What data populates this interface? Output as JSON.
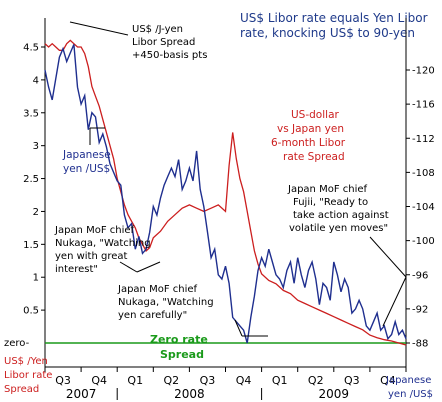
{
  "title_lines": [
    "US$ Libor rate equals Yen Libor",
    "rate, knocking US$ to 90-yen"
  ],
  "annotations": {
    "libor_spread": [
      "US$ /J-yen",
      "Libor Spread",
      "+450-basis pts"
    ],
    "japanese_yen": [
      "Japanese",
      "yen /US$"
    ],
    "us_dollar_spread": [
      "US-dollar",
      "vs Japan yen",
      "6-month Libor",
      "rate Spread"
    ],
    "nukaga_great": [
      "Japan MoF chief",
      "Nukaga, \"Watching",
      "yen with great",
      "interest\""
    ],
    "nukaga_carefully": [
      "Japan MoF chief",
      "Nukaga, \"Watching",
      "yen carefully\""
    ],
    "fujii": [
      "Japan MoF chief",
      "Fujii, \"Ready to",
      "take action against",
      "volatile yen moves\""
    ],
    "zero_rate_spread": [
      "Zero rate",
      "Spread"
    ]
  },
  "left_axis_label": [
    "US$ /Yen",
    "Libor rate",
    "Spread"
  ],
  "right_axis_label": [
    "Japanese",
    "yen /US$"
  ],
  "zero_label": "zero-",
  "colors": {
    "spread_line": "#cc1f1f",
    "yen_line": "#1f2f8f",
    "zero_line": "#1a9a1a",
    "title": "#1f3a8a",
    "grid": "#000000"
  },
  "chart_data": {
    "type": "line",
    "x_quarters": [
      "Q3",
      "Q4",
      "Q1",
      "Q2",
      "Q3",
      "Q4",
      "Q1",
      "Q2",
      "Q3",
      "Q4"
    ],
    "x_years": [
      "2007",
      "2008",
      "2009"
    ],
    "left_axis": {
      "ticks": [
        "4.5",
        "4",
        "3.5",
        "3",
        "2.5",
        "2",
        "1.5",
        "1",
        "0.5"
      ],
      "min": 0,
      "max": 4.75
    },
    "right_axis": {
      "ticks": [
        "120",
        "116",
        "112",
        "108",
        "104",
        "100",
        "96",
        "92",
        "88"
      ],
      "min": 88,
      "max": 123
    },
    "series": [
      {
        "name": "US-dollar vs Japan yen 6-month Libor rate Spread",
        "axis": "left",
        "x": [
          0.0,
          0.1,
          0.2,
          0.3,
          0.4,
          0.5,
          0.6,
          0.7,
          0.8,
          0.9,
          1.0,
          1.1,
          1.2,
          1.3,
          1.4,
          1.5,
          1.6,
          1.7,
          1.8,
          1.9,
          2.0,
          2.1,
          2.2,
          2.3,
          2.4,
          2.5,
          2.6,
          2.7,
          2.8,
          2.9,
          3.0,
          3.2,
          3.4,
          3.6,
          3.8,
          4.0,
          4.2,
          4.4,
          4.6,
          4.8,
          5.0,
          5.1,
          5.2,
          5.3,
          5.4,
          5.5,
          5.6,
          5.7,
          5.8,
          5.9,
          6.0,
          6.2,
          6.4,
          6.6,
          6.8,
          7.0,
          7.2,
          7.4,
          7.6,
          7.8,
          8.0,
          8.2,
          8.4,
          8.6,
          8.8,
          9.0,
          9.2,
          9.4,
          9.6,
          9.8,
          10.0
        ],
        "values": [
          4.55,
          4.5,
          4.55,
          4.5,
          4.45,
          4.45,
          4.55,
          4.6,
          4.55,
          4.5,
          4.5,
          4.4,
          4.2,
          3.9,
          3.75,
          3.6,
          3.4,
          3.2,
          3.0,
          2.8,
          2.5,
          2.3,
          2.1,
          1.95,
          1.85,
          1.75,
          1.6,
          1.5,
          1.4,
          1.45,
          1.6,
          1.7,
          1.85,
          1.95,
          2.05,
          2.1,
          2.05,
          2.0,
          2.05,
          2.1,
          2.0,
          2.7,
          3.2,
          2.8,
          2.5,
          2.3,
          2.0,
          1.7,
          1.4,
          1.2,
          1.05,
          0.95,
          0.9,
          0.8,
          0.75,
          0.65,
          0.6,
          0.55,
          0.5,
          0.45,
          0.4,
          0.35,
          0.3,
          0.25,
          0.2,
          0.12,
          0.08,
          0.05,
          0.03,
          0.0,
          -0.03
        ]
      },
      {
        "name": "Japanese yen /US$",
        "axis": "right",
        "x": [
          0.0,
          0.1,
          0.2,
          0.3,
          0.4,
          0.5,
          0.6,
          0.7,
          0.8,
          0.9,
          1.0,
          1.1,
          1.2,
          1.3,
          1.4,
          1.5,
          1.6,
          1.7,
          1.8,
          1.9,
          2.0,
          2.1,
          2.2,
          2.3,
          2.4,
          2.5,
          2.6,
          2.7,
          2.8,
          2.9,
          3.0,
          3.1,
          3.2,
          3.3,
          3.4,
          3.5,
          3.6,
          3.7,
          3.8,
          3.9,
          4.0,
          4.1,
          4.2,
          4.3,
          4.4,
          4.5,
          4.6,
          4.7,
          4.8,
          4.9,
          5.0,
          5.1,
          5.2,
          5.3,
          5.4,
          5.5,
          5.6,
          5.7,
          5.8,
          5.9,
          6.0,
          6.1,
          6.2,
          6.3,
          6.4,
          6.5,
          6.6,
          6.7,
          6.8,
          6.9,
          7.0,
          7.1,
          7.2,
          7.3,
          7.4,
          7.5,
          7.6,
          7.7,
          7.8,
          7.9,
          8.0,
          8.1,
          8.2,
          8.3,
          8.4,
          8.5,
          8.6,
          8.7,
          8.8,
          8.9,
          9.0,
          9.1,
          9.2,
          9.3,
          9.4,
          9.5,
          9.6,
          9.7,
          9.8,
          9.9,
          10.0
        ],
        "values": [
          120.0,
          118.0,
          116.5,
          119.0,
          121.5,
          122.5,
          121.0,
          122.0,
          123.0,
          118.0,
          116.0,
          117.0,
          113.0,
          115.0,
          114.5,
          111.5,
          112.5,
          111.0,
          109.0,
          108.0,
          107.0,
          106.5,
          103.0,
          101.5,
          102.0,
          99.0,
          100.5,
          98.5,
          99.0,
          101.0,
          104.0,
          103.0,
          105.0,
          106.5,
          107.5,
          108.5,
          107.5,
          109.5,
          106.0,
          107.0,
          108.5,
          107.0,
          110.5,
          106.0,
          104.0,
          101.0,
          98.0,
          99.0,
          96.0,
          95.5,
          97.0,
          95.0,
          91.0,
          90.5,
          90.0,
          89.5,
          88.0,
          91.0,
          93.5,
          96.5,
          98.0,
          97.0,
          99.0,
          97.5,
          96.0,
          95.5,
          94.5,
          96.5,
          97.5,
          95.0,
          98.0,
          96.0,
          94.5,
          96.5,
          97.5,
          95.5,
          92.5,
          95.0,
          94.5,
          93.0,
          97.5,
          96.0,
          94.0,
          95.5,
          94.5,
          91.5,
          92.0,
          93.0,
          92.0,
          90.0,
          89.5,
          90.5,
          91.5,
          89.5,
          90.0,
          88.5,
          89.0,
          90.5,
          89.0,
          89.5,
          88.5
        ]
      }
    ]
  }
}
